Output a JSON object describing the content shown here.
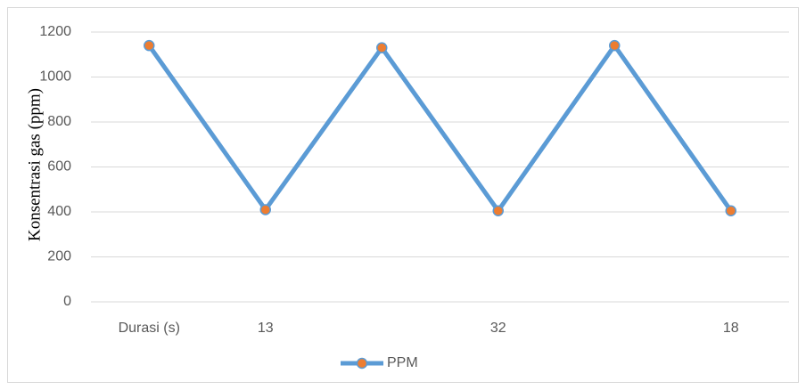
{
  "chart_data": {
    "type": "line",
    "y_label": "Konsentrasi gas (ppm)",
    "categories": [
      "Durasi (s)",
      "13",
      null,
      "32",
      null,
      "18"
    ],
    "series": [
      {
        "name": "PPM",
        "color": "#5b9bd5",
        "marker_color": "#ed7d31",
        "values": [
          1140,
          410,
          1130,
          405,
          1140,
          405
        ]
      }
    ],
    "ylim": [
      0,
      1200
    ],
    "yticks": [
      0,
      200,
      400,
      600,
      800,
      1000,
      1200
    ],
    "grid": true,
    "legend": "bottom"
  }
}
